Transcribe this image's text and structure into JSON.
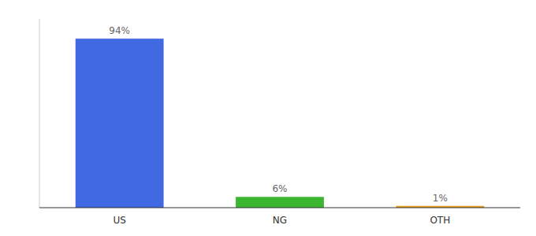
{
  "chart_data": {
    "type": "bar",
    "categories": [
      "US",
      "NG",
      "OTH"
    ],
    "values": [
      94,
      6,
      1
    ],
    "value_labels": [
      "94%",
      "6%",
      "1%"
    ],
    "colors": [
      "#4169e1",
      "#3cb531",
      "#e8a020"
    ],
    "ylim": [
      0,
      105
    ],
    "grid": false,
    "data_labels": true,
    "tick_labels": "x"
  }
}
